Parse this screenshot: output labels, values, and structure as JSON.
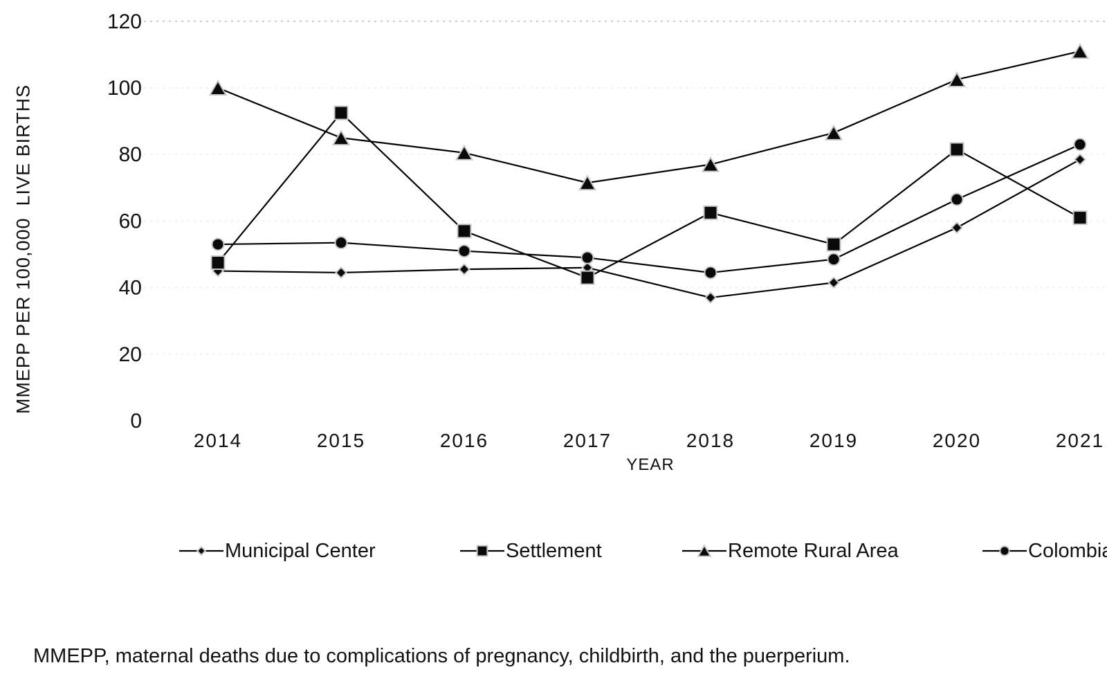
{
  "chart_data": {
    "type": "line",
    "categories": [
      "2014",
      "2015",
      "2016",
      "2017",
      "2018",
      "2019",
      "2020",
      "2021"
    ],
    "series": [
      {
        "name": "Municipal Center",
        "marker": "diamond",
        "values": [
          45,
          44.5,
          45.5,
          46,
          37,
          41.5,
          58,
          78.5
        ]
      },
      {
        "name": "Settlement",
        "marker": "square",
        "values": [
          47.5,
          92.5,
          57,
          43,
          62.5,
          53,
          81.5,
          61
        ]
      },
      {
        "name": "Remote Rural Area",
        "marker": "triangle",
        "values": [
          100,
          85,
          80.5,
          71.5,
          77,
          86.5,
          102.5,
          111
        ]
      },
      {
        "name": "Colombia",
        "marker": "circle",
        "values": [
          53,
          53.5,
          51,
          49,
          44.5,
          48.5,
          66.5,
          83
        ]
      }
    ],
    "title": "",
    "xlabel": "YEAR",
    "ylabel": "MMEPP PER 100,000  LIVE BIRTHS",
    "ylim": [
      0,
      120
    ],
    "yticks": [
      0,
      20,
      40,
      60,
      80,
      100,
      120
    ],
    "grid": "faint dashed horizontal gridlines",
    "legend_position": "bottom"
  },
  "colors": {
    "line": "#000000",
    "marker_fill": "#0a0a0a",
    "marker_halo": "#c8c8c8",
    "grid_faint": "#efefef",
    "grid_top": "#c9c9c9",
    "text": "#111111"
  },
  "footnote": "MMEPP, maternal deaths due to complications of pregnancy, childbirth, and the puerperium."
}
